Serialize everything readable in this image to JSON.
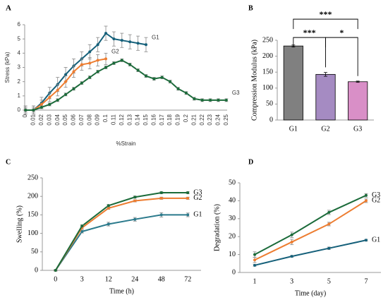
{
  "chart_data": [
    {
      "type": "line",
      "panel": "A",
      "xlabel": "%Strain",
      "ylabel": "Stress (kPa)",
      "categories": [
        "0",
        "0.01",
        "0.02",
        "0.03",
        "0.04",
        "0.05",
        "0.06",
        "0.07",
        "0.08",
        "0.09",
        "0.1",
        "0.11",
        "0.12",
        "0.13",
        "0.14",
        "0.15",
        "0.16",
        "0.17",
        "0.18",
        "0.19",
        "0.2",
        "0.21",
        "0.22",
        "0.23",
        "0.24",
        "0.25"
      ],
      "ylim": [
        0,
        6
      ],
      "yticks": [
        0,
        1,
        2,
        3,
        4,
        5,
        6
      ],
      "series": [
        {
          "name": "G1",
          "color": "#15607a",
          "values": [
            0,
            0,
            0.5,
            1.2,
            1.8,
            2.5,
            3.1,
            3.6,
            4.1,
            4.6,
            5.4,
            5.0,
            4.9,
            4.8,
            4.7,
            4.6,
            null,
            null,
            null,
            null,
            null,
            null,
            null,
            null,
            null,
            null
          ],
          "errors": [
            0.3,
            0.3,
            0.4,
            0.4,
            0.5,
            0.5,
            0.5,
            0.5,
            0.5,
            0.5,
            0.5,
            0.5,
            0.5,
            0.5,
            0.5,
            0.5,
            null,
            null,
            null,
            null,
            null,
            null,
            null,
            null,
            null,
            null
          ]
        },
        {
          "name": "G2",
          "color": "#ed7d31",
          "values": [
            0,
            0,
            0.4,
            0.9,
            1.4,
            2.0,
            2.7,
            3.2,
            3.3,
            3.5,
            3.6,
            null,
            null,
            null,
            null,
            null,
            null,
            null,
            null,
            null,
            null,
            null,
            null,
            null,
            null,
            null
          ],
          "errors": [
            0.2,
            0.2,
            0.3,
            0.3,
            0.4,
            0.4,
            0.4,
            0.4,
            0.4,
            0.4,
            0.4,
            null,
            null,
            null,
            null,
            null,
            null,
            null,
            null,
            null,
            null,
            null,
            null,
            null,
            null,
            null
          ]
        },
        {
          "name": "G3",
          "color": "#1b6b3a",
          "values": [
            0,
            0,
            0.2,
            0.4,
            0.7,
            1.1,
            1.5,
            1.9,
            2.3,
            2.7,
            3.0,
            3.3,
            3.5,
            3.2,
            2.8,
            2.4,
            2.2,
            2.3,
            2.0,
            1.5,
            1.2,
            0.8,
            0.7,
            0.7,
            0.7,
            0.7
          ],
          "errors": [
            0.1,
            0.1,
            0.1,
            0.1,
            0.1,
            0.1,
            0.1,
            0.1,
            0.1,
            0.1,
            0.1,
            0.1,
            0.1,
            0.1,
            0.1,
            0.1,
            0.1,
            0.1,
            0.1,
            0.1,
            0.1,
            0.1,
            0.1,
            0.1,
            0.1,
            0.1
          ]
        }
      ]
    },
    {
      "type": "bar",
      "panel": "B",
      "ylabel": "Compression Modulus (kPa)",
      "categories": [
        "G1",
        "G2",
        "G3"
      ],
      "values": [
        232,
        143,
        120
      ],
      "errors": [
        3,
        6,
        2
      ],
      "colors": [
        "#808080",
        "#a58bc2",
        "#d98fc7"
      ],
      "ylim": [
        0,
        250
      ],
      "yticks": [
        0,
        50,
        100,
        150,
        200,
        250
      ],
      "significance": [
        {
          "between": [
            "G1",
            "G2"
          ],
          "label": "***"
        },
        {
          "between": [
            "G2",
            "G3"
          ],
          "label": "*"
        },
        {
          "between": [
            "G1",
            "G3"
          ],
          "label": "***"
        }
      ]
    },
    {
      "type": "line",
      "panel": "C",
      "xlabel": "Time (h)",
      "ylabel": "Swelling (%)",
      "categories": [
        "0",
        "3",
        "12",
        "24",
        "48",
        "72"
      ],
      "ylim": [
        0,
        250
      ],
      "yticks": [
        0,
        50,
        100,
        150,
        200,
        250
      ],
      "series": [
        {
          "name": "G1",
          "color": "#2b7a8c",
          "values": [
            0,
            105,
            125,
            138,
            150,
            150
          ],
          "errors": [
            2,
            4,
            5,
            5,
            6,
            5
          ]
        },
        {
          "name": "G2",
          "color": "#ed7d31",
          "values": [
            0,
            115,
            168,
            188,
            195,
            195
          ],
          "errors": [
            2,
            3,
            3,
            3,
            3,
            3
          ]
        },
        {
          "name": "G3",
          "color": "#1b6b3a",
          "values": [
            0,
            120,
            175,
            198,
            210,
            210
          ],
          "errors": [
            2,
            3,
            3,
            3,
            3,
            3
          ]
        }
      ]
    },
    {
      "type": "line",
      "panel": "D",
      "xlabel": "Time (day)",
      "ylabel": "Degradation (%)",
      "categories": [
        "1",
        "3",
        "5",
        "7"
      ],
      "ylim": [
        0,
        50
      ],
      "yticks": [
        0,
        10,
        20,
        30,
        40,
        50
      ],
      "series": [
        {
          "name": "G1",
          "color": "#15607a",
          "values": [
            4,
            9,
            13.5,
            18
          ],
          "errors": [
            0.5,
            0.5,
            0.7,
            0.5
          ]
        },
        {
          "name": "G2",
          "color": "#ed7d31",
          "values": [
            7,
            17,
            27,
            40
          ],
          "errors": [
            1.5,
            1.5,
            1,
            1
          ]
        },
        {
          "name": "G3",
          "color": "#1b6b3a",
          "values": [
            10,
            21,
            33.5,
            43
          ],
          "errors": [
            1.5,
            1.5,
            1.2,
            1
          ]
        }
      ]
    }
  ]
}
